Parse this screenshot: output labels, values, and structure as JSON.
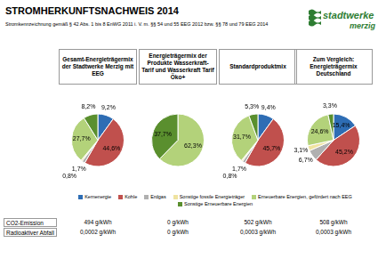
{
  "header": {
    "title": "STROMHERKUNFTSNACHWEIS 2014",
    "subtitle": "Stromkennzeichnung gemäß § 42 Abs. 1 bis 8 EnWG 2011 i. V. m. §§ 54 und 55 EEG 2012 bzw. §§ 78 und 79 EEG 2014",
    "logo": {
      "line1": "stadtwerke",
      "line2": "merzig"
    }
  },
  "chart_data": [
    {
      "type": "pie",
      "title": "Gesamt-Energieträgermix der Stadtwerke Merzig mit EEG",
      "categories": [
        "Kernenergie",
        "Kohle",
        "Erdgas",
        "Sonstige fossile Energieträger",
        "Erneuerbare Energien, gefördert nach EEG",
        "Sonstige Erneuerbare Energien"
      ],
      "colors": [
        "#2e6db4",
        "#c0504d",
        "#b0b0b0",
        "#efe3a0",
        "#b3d27a",
        "#5a8f2e"
      ],
      "values": [
        9.2,
        44.6,
        1.7,
        0.8,
        27.7,
        8.2
      ],
      "value_labels": [
        "9,2%",
        "44,6%",
        "1,7%",
        "0,8%",
        "27,7%",
        "8,2%"
      ],
      "data_labels": true
    },
    {
      "type": "pie",
      "title": "Energieträgermix der Produkte Wasserkraft-Tarif und Wasserkraft Tarif Öko+",
      "categories": [
        "Kernenergie",
        "Kohle",
        "Erdgas",
        "Sonstige fossile Energieträger",
        "Erneuerbare Energien, gefördert nach EEG",
        "Sonstige Erneuerbare Energien"
      ],
      "colors": [
        "#2e6db4",
        "#c0504d",
        "#b0b0b0",
        "#efe3a0",
        "#b3d27a",
        "#5a8f2e"
      ],
      "values": [
        null,
        null,
        null,
        null,
        62.3,
        37.7
      ],
      "value_labels": [
        null,
        null,
        null,
        null,
        "62,3%",
        "37,7%"
      ],
      "data_labels": true
    },
    {
      "type": "pie",
      "title": "Standardproduktmix",
      "categories": [
        "Kernenergie",
        "Kohle",
        "Erdgas",
        "Sonstige fossile Energieträger",
        "Erneuerbare Energien, gefördert nach EEG",
        "Sonstige Erneuerbare Energien"
      ],
      "colors": [
        "#2e6db4",
        "#c0504d",
        "#b0b0b0",
        "#efe3a0",
        "#b3d27a",
        "#5a8f2e"
      ],
      "values": [
        9.4,
        45.7,
        1.7,
        0.8,
        31.7,
        5.3
      ],
      "value_labels": [
        "9,4%",
        "45,7%",
        "1,7%",
        "0,8%",
        "31,7%",
        "5,3%"
      ],
      "data_labels": true
    },
    {
      "type": "pie",
      "title": "Zum Vergleich: Energieträgermix Deutschland",
      "categories": [
        "Kernenergie",
        "Kohle",
        "Erdgas",
        "Sonstige fossile Energieträger",
        "Erneuerbare Energien, gefördert nach EEG",
        "Sonstige Erneuerbare Energien"
      ],
      "colors": [
        "#2e6db4",
        "#c0504d",
        "#b0b0b0",
        "#efe3a0",
        "#b3d27a",
        "#5a8f2e"
      ],
      "values": [
        15.4,
        45.2,
        6.7,
        3.1,
        24.6,
        3.3
      ],
      "value_labels": [
        "15,4%",
        "45,2%",
        "6,7%",
        "3,1%",
        "24,6%",
        "3,3%"
      ],
      "data_labels": true
    }
  ],
  "table": {
    "rows": [
      {
        "label": "CO2-Emission",
        "values": [
          "494 g/kWh",
          "0 g/kWh",
          "502 g/kWh",
          "508 g/kWh"
        ]
      },
      {
        "label": "Radioaktiver Abfall",
        "values": [
          "0,0002 g/kWh",
          "0 g/kWh",
          "0,0003 g/kWh",
          "0,0003 g/kWh"
        ]
      }
    ]
  }
}
